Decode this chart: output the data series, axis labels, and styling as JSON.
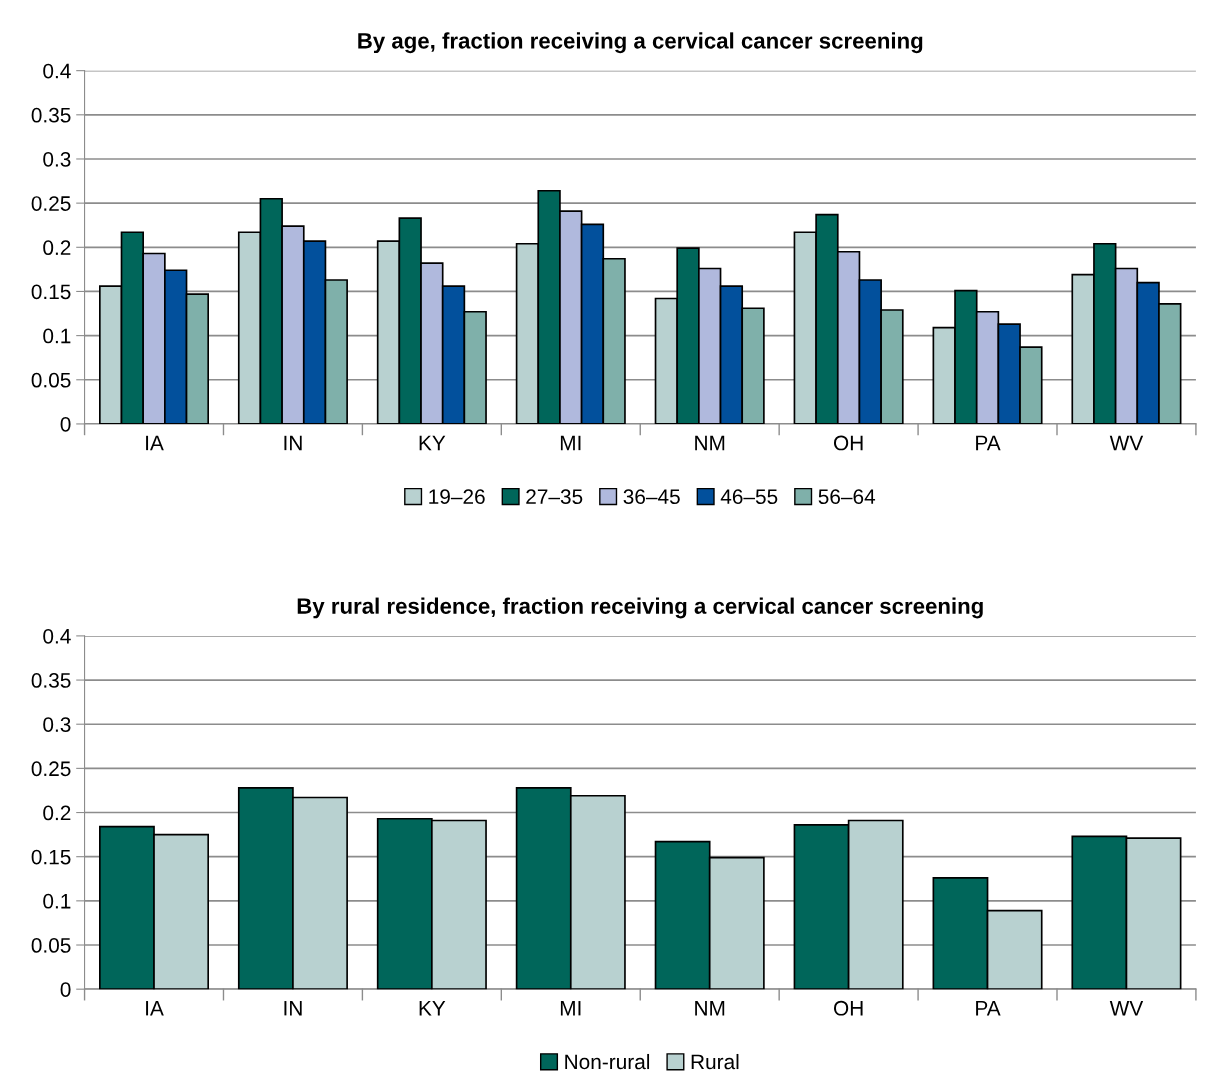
{
  "chart_data": [
    {
      "type": "bar",
      "title": "By age, fraction receiving a cervical cancer screening",
      "categories": [
        "IA",
        "IN",
        "KY",
        "MI",
        "NM",
        "OH",
        "PA",
        "WV"
      ],
      "series": [
        {
          "name": "19–26",
          "color": "#b8d1d0",
          "values": [
            0.156,
            0.217,
            0.207,
            0.204,
            0.142,
            0.217,
            0.109,
            0.169
          ]
        },
        {
          "name": "27–35",
          "color": "#00665a",
          "values": [
            0.217,
            0.255,
            0.233,
            0.264,
            0.199,
            0.237,
            0.151,
            0.204
          ]
        },
        {
          "name": "36–45",
          "color": "#b0b9dd",
          "values": [
            0.193,
            0.224,
            0.182,
            0.241,
            0.176,
            0.195,
            0.127,
            0.176
          ]
        },
        {
          "name": "46–55",
          "color": "#02509c",
          "values": [
            0.174,
            0.207,
            0.156,
            0.226,
            0.156,
            0.163,
            0.113,
            0.16
          ]
        },
        {
          "name": "56–64",
          "color": "#7fb0aa",
          "values": [
            0.147,
            0.163,
            0.127,
            0.187,
            0.131,
            0.129,
            0.087,
            0.136
          ]
        }
      ],
      "ylim": [
        0,
        0.4
      ],
      "yticks": [
        0,
        0.05,
        0.1,
        0.15,
        0.2,
        0.25,
        0.3,
        0.35,
        0.4
      ],
      "grid": "y",
      "legend": "bottom"
    },
    {
      "type": "bar",
      "title": "By rural residence, fraction receiving a cervical cancer screening",
      "categories": [
        "IA",
        "IN",
        "KY",
        "MI",
        "NM",
        "OH",
        "PA",
        "WV"
      ],
      "series": [
        {
          "name": "Non-rural",
          "color": "#00665a",
          "values": [
            0.184,
            0.228,
            0.193,
            0.228,
            0.167,
            0.186,
            0.126,
            0.173
          ]
        },
        {
          "name": "Rural",
          "color": "#b8d1d0",
          "values": [
            0.175,
            0.217,
            0.191,
            0.219,
            0.149,
            0.191,
            0.089,
            0.171
          ]
        }
      ],
      "ylim": [
        0,
        0.4
      ],
      "yticks": [
        0,
        0.05,
        0.1,
        0.15,
        0.2,
        0.25,
        0.3,
        0.35,
        0.4
      ],
      "grid": "y",
      "legend": "bottom"
    }
  ]
}
